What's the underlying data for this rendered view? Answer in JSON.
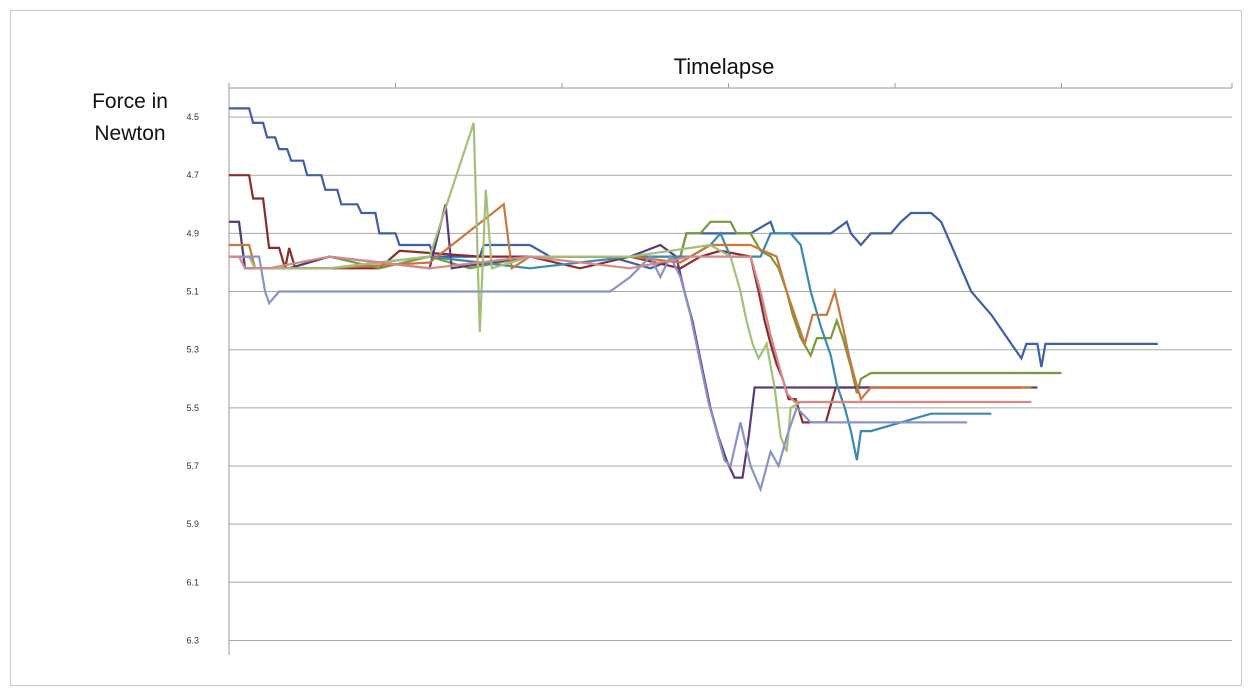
{
  "chart_data": {
    "type": "line",
    "title": "Timelapse",
    "ylabel": "Force in Newton",
    "ylabel_lines": [
      "Force in",
      "Newton"
    ],
    "xlabel": "",
    "y_inverted": true,
    "ylim": [
      4.4,
      6.35
    ],
    "y_ticks": [
      4.5,
      4.7,
      4.9,
      5.1,
      5.3,
      5.5,
      5.7,
      5.9,
      6.1,
      6.3
    ],
    "y_tick_labels": [
      "4.5",
      "4.7",
      "4.9",
      "5.1",
      "5.3",
      "5.5",
      "5.7",
      "5.9",
      "6.1",
      "6.3"
    ],
    "xlim": [
      0,
      1000
    ],
    "x_tick_marks": [
      0,
      166,
      332,
      498,
      664,
      830,
      1000
    ],
    "grid": true,
    "legend": "none",
    "series": [
      {
        "color": "#3F5FA8",
        "points": [
          [
            0,
            4.47
          ],
          [
            20,
            4.47
          ],
          [
            24,
            4.52
          ],
          [
            34,
            4.52
          ],
          [
            38,
            4.57
          ],
          [
            46,
            4.57
          ],
          [
            50,
            4.61
          ],
          [
            58,
            4.61
          ],
          [
            62,
            4.65
          ],
          [
            74,
            4.65
          ],
          [
            78,
            4.7
          ],
          [
            92,
            4.7
          ],
          [
            96,
            4.75
          ],
          [
            108,
            4.75
          ],
          [
            112,
            4.8
          ],
          [
            128,
            4.8
          ],
          [
            132,
            4.83
          ],
          [
            146,
            4.83
          ],
          [
            150,
            4.9
          ],
          [
            166,
            4.9
          ],
          [
            170,
            4.94
          ],
          [
            200,
            4.94
          ],
          [
            204,
            4.98
          ],
          [
            250,
            4.98
          ],
          [
            254,
            4.94
          ],
          [
            300,
            4.94
          ],
          [
            320,
            4.98
          ],
          [
            380,
            4.98
          ],
          [
            420,
            5.02
          ],
          [
            450,
            4.98
          ],
          [
            456,
            4.9
          ],
          [
            520,
            4.9
          ],
          [
            540,
            4.86
          ],
          [
            544,
            4.9
          ],
          [
            600,
            4.9
          ],
          [
            616,
            4.86
          ],
          [
            620,
            4.9
          ],
          [
            630,
            4.94
          ],
          [
            640,
            4.9
          ],
          [
            660,
            4.9
          ],
          [
            670,
            4.86
          ],
          [
            680,
            4.83
          ],
          [
            700,
            4.83
          ],
          [
            710,
            4.86
          ],
          [
            720,
            4.94
          ],
          [
            730,
            5.02
          ],
          [
            740,
            5.1
          ],
          [
            750,
            5.14
          ],
          [
            760,
            5.18
          ],
          [
            770,
            5.23
          ],
          [
            780,
            5.28
          ],
          [
            790,
            5.33
          ],
          [
            795,
            5.28
          ],
          [
            806,
            5.28
          ],
          [
            810,
            5.36
          ],
          [
            814,
            5.28
          ],
          [
            926,
            5.28
          ]
        ]
      },
      {
        "color": "#8B2B2B",
        "points": [
          [
            0,
            4.7
          ],
          [
            20,
            4.7
          ],
          [
            24,
            4.78
          ],
          [
            34,
            4.78
          ],
          [
            40,
            4.95
          ],
          [
            50,
            4.95
          ],
          [
            56,
            5.02
          ],
          [
            60,
            4.95
          ],
          [
            66,
            5.02
          ],
          [
            150,
            5.02
          ],
          [
            170,
            4.96
          ],
          [
            250,
            4.98
          ],
          [
            300,
            4.98
          ],
          [
            350,
            5.02
          ],
          [
            400,
            4.98
          ],
          [
            450,
            5.02
          ],
          [
            470,
            4.98
          ],
          [
            490,
            4.96
          ],
          [
            520,
            4.98
          ],
          [
            528,
            5.1
          ],
          [
            534,
            5.2
          ],
          [
            540,
            5.28
          ],
          [
            546,
            5.35
          ],
          [
            552,
            5.4
          ],
          [
            558,
            5.47
          ],
          [
            565,
            5.47
          ],
          [
            572,
            5.55
          ],
          [
            595,
            5.55
          ],
          [
            605,
            5.43
          ],
          [
            620,
            5.43
          ],
          [
            640,
            5.43
          ],
          [
            700,
            5.43
          ],
          [
            720,
            5.43
          ],
          [
            740,
            5.43
          ],
          [
            790,
            5.43
          ]
        ]
      },
      {
        "color": "#7A9A3A",
        "points": [
          [
            0,
            4.86
          ],
          [
            10,
            4.86
          ],
          [
            16,
            5.02
          ],
          [
            60,
            5.02
          ],
          [
            100,
            4.98
          ],
          [
            150,
            5.02
          ],
          [
            200,
            4.98
          ],
          [
            240,
            5.02
          ],
          [
            300,
            4.98
          ],
          [
            400,
            4.98
          ],
          [
            450,
            4.98
          ],
          [
            456,
            4.9
          ],
          [
            470,
            4.9
          ],
          [
            480,
            4.86
          ],
          [
            500,
            4.86
          ],
          [
            506,
            4.9
          ],
          [
            520,
            4.9
          ],
          [
            530,
            4.96
          ],
          [
            540,
            4.98
          ],
          [
            548,
            5.02
          ],
          [
            556,
            5.1
          ],
          [
            562,
            5.18
          ],
          [
            570,
            5.26
          ],
          [
            580,
            5.32
          ],
          [
            586,
            5.26
          ],
          [
            600,
            5.26
          ],
          [
            606,
            5.2
          ],
          [
            612,
            5.26
          ],
          [
            620,
            5.36
          ],
          [
            626,
            5.45
          ],
          [
            630,
            5.4
          ],
          [
            640,
            5.38
          ],
          [
            700,
            5.38
          ],
          [
            760,
            5.38
          ],
          [
            830,
            5.38
          ]
        ]
      },
      {
        "color": "#5B3A7A",
        "points": [
          [
            0,
            4.86
          ],
          [
            10,
            4.86
          ],
          [
            16,
            5.02
          ],
          [
            60,
            5.02
          ],
          [
            100,
            4.98
          ],
          [
            200,
            5.02
          ],
          [
            216,
            4.8
          ],
          [
            222,
            5.02
          ],
          [
            300,
            4.98
          ],
          [
            400,
            4.98
          ],
          [
            430,
            4.94
          ],
          [
            446,
            4.98
          ],
          [
            454,
            5.1
          ],
          [
            462,
            5.2
          ],
          [
            468,
            5.3
          ],
          [
            474,
            5.4
          ],
          [
            480,
            5.5
          ],
          [
            488,
            5.6
          ],
          [
            496,
            5.68
          ],
          [
            504,
            5.74
          ],
          [
            512,
            5.74
          ],
          [
            518,
            5.6
          ],
          [
            524,
            5.43
          ],
          [
            540,
            5.43
          ],
          [
            560,
            5.43
          ],
          [
            620,
            5.43
          ],
          [
            700,
            5.43
          ],
          [
            760,
            5.43
          ],
          [
            806,
            5.43
          ]
        ]
      },
      {
        "color": "#3A8AB0",
        "points": [
          [
            0,
            4.98
          ],
          [
            20,
            4.98
          ],
          [
            26,
            5.02
          ],
          [
            100,
            5.02
          ],
          [
            200,
            4.98
          ],
          [
            300,
            5.02
          ],
          [
            400,
            4.98
          ],
          [
            460,
            4.98
          ],
          [
            480,
            4.94
          ],
          [
            490,
            4.9
          ],
          [
            500,
            4.98
          ],
          [
            530,
            4.98
          ],
          [
            540,
            4.9
          ],
          [
            560,
            4.9
          ],
          [
            570,
            4.94
          ],
          [
            580,
            5.1
          ],
          [
            590,
            5.22
          ],
          [
            600,
            5.32
          ],
          [
            606,
            5.42
          ],
          [
            614,
            5.5
          ],
          [
            620,
            5.58
          ],
          [
            626,
            5.68
          ],
          [
            630,
            5.58
          ],
          [
            640,
            5.58
          ],
          [
            700,
            5.52
          ],
          [
            760,
            5.52
          ]
        ]
      },
      {
        "color": "#C9773A",
        "points": [
          [
            0,
            4.94
          ],
          [
            20,
            4.94
          ],
          [
            26,
            5.02
          ],
          [
            100,
            5.02
          ],
          [
            200,
            5.0
          ],
          [
            274,
            4.8
          ],
          [
            282,
            5.02
          ],
          [
            300,
            4.98
          ],
          [
            400,
            4.98
          ],
          [
            450,
            5.0
          ],
          [
            480,
            4.94
          ],
          [
            520,
            4.94
          ],
          [
            546,
            4.98
          ],
          [
            556,
            5.1
          ],
          [
            566,
            5.2
          ],
          [
            574,
            5.28
          ],
          [
            582,
            5.18
          ],
          [
            596,
            5.18
          ],
          [
            604,
            5.1
          ],
          [
            612,
            5.22
          ],
          [
            618,
            5.32
          ],
          [
            624,
            5.4
          ],
          [
            630,
            5.47
          ],
          [
            640,
            5.43
          ],
          [
            700,
            5.43
          ],
          [
            760,
            5.43
          ],
          [
            800,
            5.43
          ]
        ]
      },
      {
        "color": "#A4BF78",
        "points": [
          [
            0,
            4.98
          ],
          [
            20,
            4.98
          ],
          [
            26,
            5.02
          ],
          [
            100,
            5.02
          ],
          [
            200,
            4.98
          ],
          [
            244,
            4.52
          ],
          [
            250,
            5.24
          ],
          [
            256,
            4.75
          ],
          [
            262,
            5.02
          ],
          [
            300,
            4.98
          ],
          [
            400,
            4.98
          ],
          [
            480,
            4.94
          ],
          [
            500,
            4.98
          ],
          [
            510,
            5.1
          ],
          [
            516,
            5.2
          ],
          [
            522,
            5.28
          ],
          [
            528,
            5.33
          ],
          [
            536,
            5.28
          ],
          [
            544,
            5.43
          ],
          [
            550,
            5.6
          ],
          [
            556,
            5.65
          ],
          [
            560,
            5.5
          ],
          [
            570,
            5.48
          ],
          [
            640,
            5.48
          ],
          [
            700,
            5.48
          ],
          [
            770,
            5.48
          ]
        ]
      },
      {
        "color": "#8A93C8",
        "points": [
          [
            0,
            4.98
          ],
          [
            30,
            4.98
          ],
          [
            36,
            5.1
          ],
          [
            40,
            5.14
          ],
          [
            50,
            5.1
          ],
          [
            200,
            5.1
          ],
          [
            300,
            5.1
          ],
          [
            380,
            5.1
          ],
          [
            400,
            5.05
          ],
          [
            420,
            4.98
          ],
          [
            430,
            5.05
          ],
          [
            440,
            4.98
          ],
          [
            450,
            5.05
          ],
          [
            460,
            5.18
          ],
          [
            466,
            5.28
          ],
          [
            472,
            5.38
          ],
          [
            478,
            5.48
          ],
          [
            486,
            5.58
          ],
          [
            494,
            5.68
          ],
          [
            500,
            5.7
          ],
          [
            510,
            5.55
          ],
          [
            520,
            5.7
          ],
          [
            530,
            5.78
          ],
          [
            540,
            5.65
          ],
          [
            548,
            5.7
          ],
          [
            556,
            5.6
          ],
          [
            566,
            5.5
          ],
          [
            580,
            5.55
          ],
          [
            620,
            5.55
          ],
          [
            660,
            5.55
          ],
          [
            700,
            5.55
          ],
          [
            736,
            5.55
          ]
        ]
      },
      {
        "color": "#D48A8A",
        "points": [
          [
            0,
            4.98
          ],
          [
            10,
            4.98
          ],
          [
            16,
            5.02
          ],
          [
            40,
            5.02
          ],
          [
            100,
            4.98
          ],
          [
            200,
            5.02
          ],
          [
            300,
            4.98
          ],
          [
            400,
            5.02
          ],
          [
            460,
            4.98
          ],
          [
            520,
            4.98
          ],
          [
            530,
            5.1
          ],
          [
            540,
            5.25
          ],
          [
            548,
            5.35
          ],
          [
            556,
            5.45
          ],
          [
            564,
            5.48
          ],
          [
            600,
            5.48
          ],
          [
            700,
            5.48
          ],
          [
            800,
            5.48
          ]
        ]
      }
    ]
  }
}
